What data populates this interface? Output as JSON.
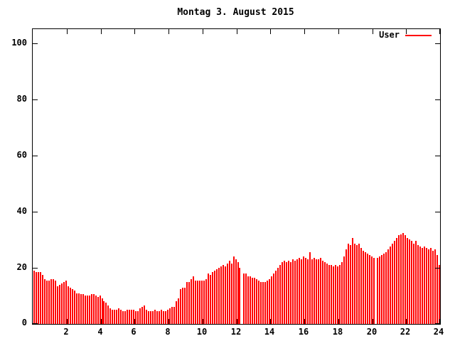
{
  "title": "Montag 3. August 2015",
  "legend": {
    "label": "User",
    "color": "#ff0000"
  },
  "axes": {
    "y_ticks": [
      0,
      20,
      40,
      60,
      80,
      100
    ],
    "x_ticks": [
      2,
      4,
      6,
      8,
      10,
      12,
      14,
      16,
      18,
      20,
      22,
      24
    ]
  },
  "colors": {
    "bar": "#ff0000",
    "border": "#000000",
    "background": "#ffffff"
  },
  "chart_data": {
    "type": "bar",
    "title": "Montag 3. August 2015",
    "series_name": "User",
    "x_unit": "hour_of_day",
    "x_start": 0,
    "x_step": 0.125,
    "xlim": [
      0,
      24
    ],
    "ylim": [
      0,
      105
    ],
    "xlabel": "",
    "ylabel": "",
    "grid": false,
    "legend_position": "top-right-inside",
    "bar_color": "#ff0000",
    "values": [
      19,
      18.5,
      18.5,
      18.5,
      17.5,
      16,
      15.5,
      15.5,
      16,
      16,
      15.5,
      13.5,
      14,
      14.5,
      15,
      15.5,
      13.5,
      13,
      12.5,
      12,
      11,
      11,
      10.5,
      10.5,
      10,
      10,
      10,
      10.5,
      10.5,
      10,
      9.5,
      10,
      9,
      8,
      7.5,
      6.5,
      5.5,
      5,
      5,
      5,
      5.5,
      5,
      4.5,
      4.5,
      5,
      5,
      5,
      5,
      4.5,
      4.5,
      5.5,
      6,
      6.5,
      5,
      4.5,
      4.5,
      4.5,
      5,
      4.5,
      4.5,
      5,
      4.5,
      4.5,
      5,
      5.5,
      6,
      6,
      8,
      9,
      12.5,
      13,
      13,
      15,
      15,
      16,
      17,
      15.5,
      15.5,
      15.5,
      15.5,
      15.5,
      16,
      18,
      17.5,
      18.5,
      19,
      19.5,
      20,
      20.5,
      21,
      20.5,
      21.5,
      22.5,
      21.5,
      24,
      23,
      22,
      20,
      0,
      18,
      18,
      17,
      17,
      16.5,
      16.5,
      16,
      15.5,
      15,
      15,
      15,
      15.5,
      16,
      17,
      18,
      19,
      20,
      21,
      22,
      22.5,
      22,
      22.5,
      22,
      23,
      22.5,
      23,
      23.5,
      23,
      24,
      23.5,
      23,
      25.5,
      23,
      23.5,
      23,
      23,
      23.5,
      22.5,
      22,
      21.5,
      21,
      21,
      20.5,
      21,
      20.5,
      21,
      22,
      24,
      26.5,
      28.5,
      28,
      30.5,
      28.5,
      28,
      28.5,
      27,
      26,
      25.5,
      25,
      24.5,
      24,
      23.5,
      0,
      23.5,
      24,
      24.5,
      25,
      25.5,
      26.5,
      27.5,
      28.5,
      29.5,
      30.5,
      31.5,
      32,
      32.5,
      31.5,
      30.5,
      30,
      29.5,
      28.5,
      29.5,
      28,
      27.5,
      27,
      27.5,
      27,
      26.5,
      27,
      26,
      26.5,
      24.5,
      21
    ]
  }
}
